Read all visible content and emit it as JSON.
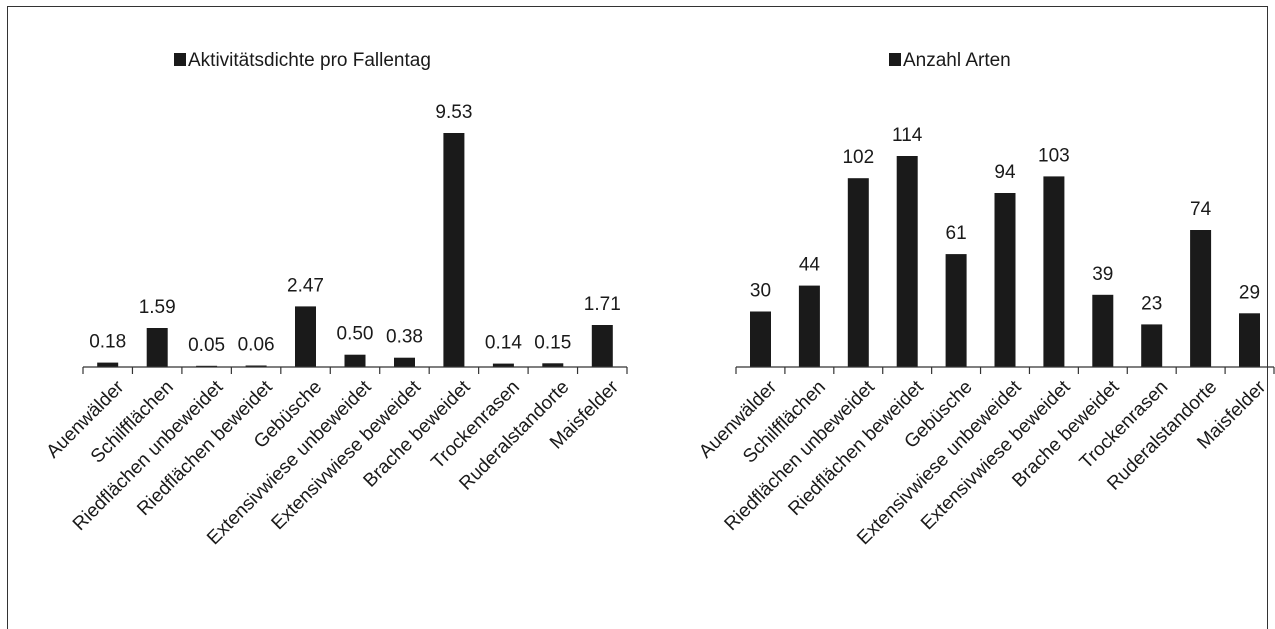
{
  "chart_data": [
    {
      "type": "bar",
      "categories": [
        "Auenwälder",
        "Schilfflächen",
        "Riedflächen unbeweidet",
        "Riedflächen beweidet",
        "Gebüsche",
        "Extensivwiese unbeweidet",
        "Extensivwiese beweidet",
        "Brache beweidet",
        "Trockenrasen",
        "Ruderalstandorte",
        "Maisfelder"
      ],
      "series": [
        {
          "name": "Aktivitätsdichte pro Fallentag",
          "values": [
            0.18,
            1.59,
            0.05,
            0.06,
            2.47,
            0.5,
            0.38,
            9.53,
            0.14,
            0.15,
            1.71
          ]
        }
      ],
      "value_labels": [
        "0.18",
        "1.59",
        "0.05",
        "0.06",
        "2.47",
        "0.50",
        "0.38",
        "9.53",
        "0.14",
        "0.15",
        "1.71"
      ],
      "ylim": [
        0,
        9.53
      ],
      "legend": "top",
      "grid": false,
      "bar_color": "#1a1a1a"
    },
    {
      "type": "bar",
      "categories": [
        "Auenwälder",
        "Schilfflächen",
        "Riedflächen unbeweidet",
        "Riedflächen beweidet",
        "Gebüsche",
        "Extensivwiese unbeweidet",
        "Extensivwiese beweidet",
        "Brache beweidet",
        "Trockenrasen",
        "Ruderalstandorte",
        "Maisfelder"
      ],
      "series": [
        {
          "name": "Anzahl Arten",
          "values": [
            30,
            44,
            102,
            114,
            61,
            94,
            103,
            39,
            23,
            74,
            29
          ]
        }
      ],
      "value_labels": [
        "30",
        "44",
        "102",
        "114",
        "61",
        "94",
        "103",
        "39",
        "23",
        "74",
        "29"
      ],
      "ylim": [
        0,
        114
      ],
      "legend": "top",
      "grid": false,
      "bar_color": "#1a1a1a"
    }
  ]
}
